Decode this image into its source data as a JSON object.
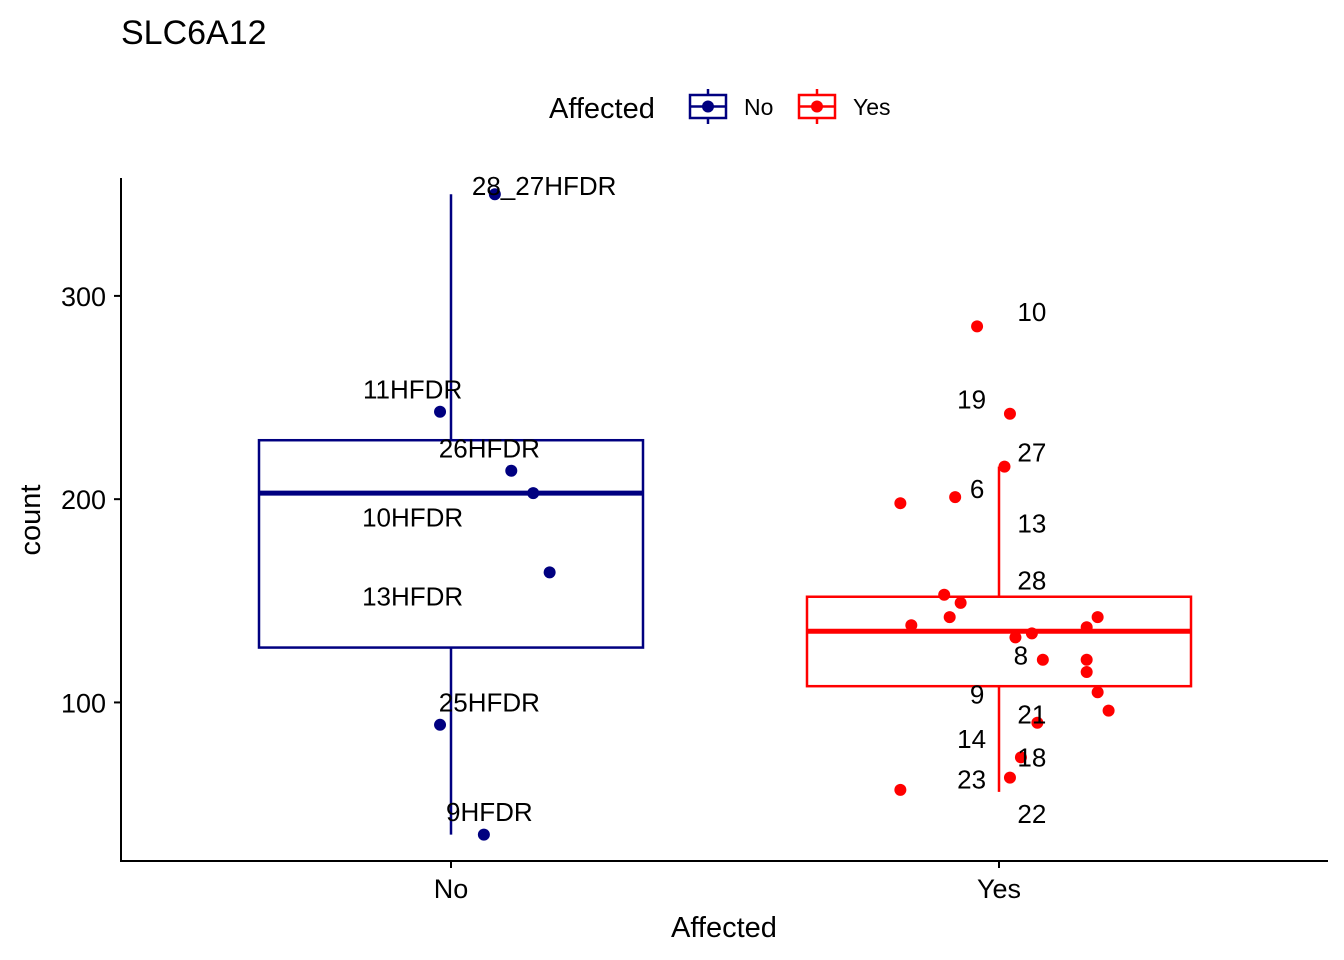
{
  "chart_data": {
    "type": "box",
    "title": "SLC6A12",
    "xlabel": "Affected",
    "ylabel": "count",
    "ylim": [
      22,
      358
    ],
    "yticks": [
      100,
      200,
      300
    ],
    "categories": [
      "No",
      "Yes"
    ],
    "legend": {
      "title": "Affected",
      "placement": "top",
      "entries": [
        {
          "label": "No",
          "color": "#000080"
        },
        {
          "label": "Yes",
          "color": "#ff0000"
        }
      ]
    },
    "grid": false,
    "series": [
      {
        "name": "No",
        "color": "#000080",
        "box": {
          "whisker_low": 35,
          "q1": 127,
          "median": 203,
          "q3": 229,
          "whisker_high": 350
        },
        "points": [
          {
            "x": 0.08,
            "y": 350
          },
          {
            "x": -0.02,
            "y": 243
          },
          {
            "x": 0.11,
            "y": 214
          },
          {
            "x": 0.15,
            "y": 203
          },
          {
            "x": 0.18,
            "y": 164
          },
          {
            "x": -0.02,
            "y": 89
          },
          {
            "x": 0.06,
            "y": 35
          }
        ],
        "labels": [
          {
            "text": "28_27HFDR",
            "x": 0.17,
            "y": 354
          },
          {
            "text": "11HFDR",
            "x": -0.07,
            "y": 254
          },
          {
            "text": "26HFDR",
            "x": 0.07,
            "y": 225
          },
          {
            "text": "10HFDR",
            "x": -0.07,
            "y": 191
          },
          {
            "text": "13HFDR",
            "x": -0.07,
            "y": 152
          },
          {
            "text": "25HFDR",
            "x": 0.07,
            "y": 100
          },
          {
            "text": "9HFDR",
            "x": 0.07,
            "y": 46
          }
        ]
      },
      {
        "name": "Yes",
        "color": "#ff0000",
        "box": {
          "whisker_low": 56,
          "q1": 108,
          "median": 135,
          "q3": 152,
          "whisker_high": 216
        },
        "points": [
          {
            "x": -0.04,
            "y": 285
          },
          {
            "x": 0.02,
            "y": 242
          },
          {
            "x": 0.01,
            "y": 216
          },
          {
            "x": -0.08,
            "y": 201
          },
          {
            "x": -0.18,
            "y": 198
          },
          {
            "x": -0.1,
            "y": 153
          },
          {
            "x": -0.07,
            "y": 149
          },
          {
            "x": -0.09,
            "y": 142
          },
          {
            "x": -0.16,
            "y": 138
          },
          {
            "x": 0.03,
            "y": 132
          },
          {
            "x": 0.06,
            "y": 134
          },
          {
            "x": 0.16,
            "y": 137
          },
          {
            "x": 0.18,
            "y": 142
          },
          {
            "x": 0.08,
            "y": 121
          },
          {
            "x": 0.16,
            "y": 121
          },
          {
            "x": 0.16,
            "y": 115
          },
          {
            "x": 0.18,
            "y": 105
          },
          {
            "x": 0.2,
            "y": 96
          },
          {
            "x": 0.07,
            "y": 90
          },
          {
            "x": 0.04,
            "y": 73
          },
          {
            "x": 0.02,
            "y": 63
          },
          {
            "x": -0.18,
            "y": 57
          }
        ],
        "labels": [
          {
            "text": "10",
            "x": 0.06,
            "y": 292
          },
          {
            "text": "19",
            "x": -0.05,
            "y": 249
          },
          {
            "text": "27",
            "x": 0.06,
            "y": 223
          },
          {
            "text": "6",
            "x": -0.04,
            "y": 205
          },
          {
            "text": "13",
            "x": 0.06,
            "y": 188
          },
          {
            "text": "28",
            "x": 0.06,
            "y": 160
          },
          {
            "text": "8",
            "x": 0.04,
            "y": 123
          },
          {
            "text": "9",
            "x": -0.04,
            "y": 104
          },
          {
            "text": "21",
            "x": 0.06,
            "y": 94
          },
          {
            "text": "14",
            "x": -0.05,
            "y": 82
          },
          {
            "text": "18",
            "x": 0.06,
            "y": 73
          },
          {
            "text": "23",
            "x": -0.05,
            "y": 62
          },
          {
            "text": "22",
            "x": 0.06,
            "y": 45
          }
        ]
      }
    ]
  }
}
